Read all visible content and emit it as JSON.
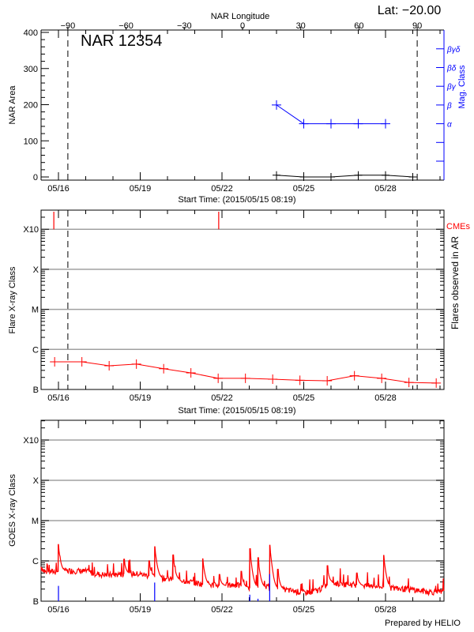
{
  "header": {
    "lat_label": "Lat: −20.00",
    "footer": "Prepared by HELIO"
  },
  "colors": {
    "area": "#000000",
    "mag": "#0000ff",
    "flare": "#ff0000",
    "cme": "#ff0000",
    "goes": "#ff0000",
    "ar_flare_marker": "#0000ff",
    "grid": "#a0a0a0"
  },
  "chart_data": [
    {
      "type": "line",
      "title": "NAR 12354",
      "xlabel": "Start Time: (2015/05/15 08:19)",
      "top_axis_label": "NAR Longitude",
      "top_axis_ticks": [
        -90,
        -60,
        -30,
        0,
        30,
        60,
        90
      ],
      "top_axis_tick_labels": [
        "−90",
        "−60",
        "−30",
        "0",
        "30",
        "60",
        "90"
      ],
      "limb_longitudes": [
        -90,
        90
      ],
      "x_units": "day of May 2015",
      "xlim": [
        15.35,
        30.14
      ],
      "x_ticks": [
        16,
        19,
        22,
        25,
        28
      ],
      "x_tick_labels": [
        "05/16",
        "05/19",
        "05/22",
        "05/25",
        "05/28"
      ],
      "ylabel": "NAR Area",
      "ylim": [
        0,
        400
      ],
      "y_ticks": [
        0,
        100,
        200,
        300,
        400
      ],
      "y_tick_labels": [
        "0",
        "100",
        "200",
        "300",
        "400"
      ],
      "y2label": "Mag. Class",
      "y2_tick_labels": [
        "",
        "",
        "α",
        "β",
        "βγ",
        "βδ",
        "βγδ"
      ],
      "series": [
        {
          "name": "NAR Area",
          "x": [
            24.0,
            25.0,
            26.0,
            27.0,
            28.0,
            29.0
          ],
          "y": [
            5,
            0,
            0,
            5,
            5,
            0
          ]
        },
        {
          "name": "Mag. Class",
          "x": [
            24.0,
            25.0,
            26.0,
            27.0,
            28.0
          ],
          "y": [
            "β",
            "α",
            "α",
            "α",
            "α"
          ]
        }
      ]
    },
    {
      "type": "line",
      "xlabel": "Start Time: (2015/05/15 08:19)",
      "xlim": [
        15.35,
        30.14
      ],
      "x_ticks": [
        16,
        19,
        22,
        25,
        28
      ],
      "x_tick_labels": [
        "05/16",
        "05/19",
        "05/22",
        "05/25",
        "05/28"
      ],
      "ylabel": "Flare X-ray Class",
      "y2label": "Flares observed in AR",
      "y_scale": "log",
      "ylim": [
        1e-07,
        0.005
      ],
      "y_ticks": [
        1e-07,
        1e-06,
        1e-05,
        0.0001,
        0.001
      ],
      "y_tick_labels": [
        "B",
        "C",
        "M",
        "X",
        "X10"
      ],
      "grid": true,
      "cme_label": "CMEs",
      "cme_times": [
        15.83,
        21.88
      ],
      "series": [
        {
          "x": [
            15.86,
            16.86,
            17.86,
            18.86,
            19.86,
            20.86,
            21.86,
            22.86,
            23.86,
            24.86,
            25.86,
            26.86,
            27.86,
            28.86,
            29.86
          ],
          "y": [
            4.9e-07,
            4.9e-07,
            3.9e-07,
            4.3e-07,
            3.3e-07,
            2.6e-07,
            1.9e-07,
            1.9e-07,
            1.8e-07,
            1.7e-07,
            1.65e-07,
            2.2e-07,
            1.9e-07,
            1.5e-07,
            1.45e-07
          ]
        }
      ]
    },
    {
      "type": "line",
      "xlim": [
        15.35,
        30.14
      ],
      "x_ticks": [
        16,
        19,
        22,
        25,
        28
      ],
      "x_tick_labels": [
        "05/16",
        "05/19",
        "05/22",
        "05/25",
        "05/28"
      ],
      "ylabel": "GOES X-ray Class",
      "y_scale": "log",
      "ylim": [
        1e-07,
        0.005
      ],
      "y_ticks": [
        1e-07,
        1e-06,
        1e-05,
        0.0001,
        0.001
      ],
      "y_tick_labels": [
        "B",
        "C",
        "M",
        "X",
        "X10"
      ],
      "grid": true,
      "series": [
        {
          "name": "GOES flux",
          "x": [
            15.36,
            15.5,
            16.0,
            16.5,
            17.0,
            17.5,
            18.0,
            18.5,
            19.0,
            19.5,
            20.0,
            20.5,
            21.0,
            21.5,
            22.0,
            22.5,
            23.0,
            23.5,
            24.0,
            24.5,
            25.0,
            25.5,
            26.0,
            26.5,
            27.0,
            27.5,
            28.0,
            28.5,
            29.0,
            29.5,
            30.14
          ],
          "y": [
            7e-07,
            5.2e-07,
            5.4e-07,
            5.6e-07,
            5.4e-07,
            4.5e-07,
            4.4e-07,
            4.8e-07,
            4.6e-07,
            4e-07,
            3.5e-07,
            3.3e-07,
            2.8e-07,
            2.5e-07,
            2.4e-07,
            2.5e-07,
            2.1e-07,
            2.2e-07,
            2e-07,
            1.8e-07,
            1.6e-07,
            1.8e-07,
            2.8e-07,
            2.6e-07,
            2.5e-07,
            2.3e-07,
            2.2e-07,
            2e-07,
            1.9e-07,
            1.7e-07,
            1.6e-07
          ]
        },
        {
          "name": "GOES peaks",
          "x": [
            15.99,
            18.4,
            19.32,
            19.53,
            20.2,
            21.29,
            21.9,
            22.7,
            23.02,
            23.32,
            23.75,
            24.04,
            25.86,
            26.94,
            27.93
          ],
          "y": [
            2.6e-06,
            1.1e-06,
            1e-06,
            2.3e-06,
            1.4e-06,
            1.15e-06,
            4.6e-07,
            5.5e-07,
            2e-06,
            1.2e-06,
            2.5e-06,
            6.2e-07,
            7.6e-07,
            5e-07,
            1.4e-06
          ]
        },
        {
          "name": "AR flare markers",
          "x": [
            16.0,
            19.53,
            23.02,
            23.32,
            23.75
          ],
          "y": [
            2.4e-07,
            2.9e-07,
            1.45e-07,
            1.15e-07,
            4.7e-07
          ]
        }
      ]
    }
  ]
}
